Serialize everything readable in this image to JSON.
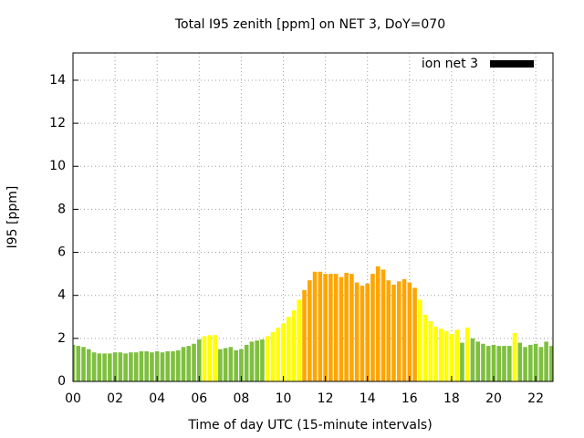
{
  "chart_data": {
    "type": "bar",
    "title": "Total I95 zenith [ppm] on NET 3, DoY=070",
    "xlabel": "Time of day UTC (15-minute intervals)",
    "ylabel": "I95 [ppm]",
    "legend": "top-right",
    "grid": true,
    "xlim": [
      0,
      22.82
    ],
    "ylim": [
      0,
      15.27
    ],
    "xticks": [
      {
        "value": 0,
        "label": "00"
      },
      {
        "value": 2,
        "label": "02"
      },
      {
        "value": 4,
        "label": "04"
      },
      {
        "value": 6,
        "label": "06"
      },
      {
        "value": 8,
        "label": "08"
      },
      10,
      12,
      14,
      16,
      18,
      20,
      22
    ],
    "yticks": [
      0,
      2,
      4,
      6,
      8,
      10,
      12,
      14
    ],
    "x": [
      0,
      0.25,
      0.5,
      0.75,
      1,
      1.25,
      1.5,
      1.75,
      2,
      2.25,
      2.5,
      2.75,
      3,
      3.25,
      3.5,
      3.75,
      4,
      4.25,
      4.5,
      4.75,
      5,
      5.25,
      5.5,
      5.75,
      6,
      6.25,
      6.5,
      6.75,
      7,
      7.25,
      7.5,
      7.75,
      8,
      8.25,
      8.5,
      8.75,
      9,
      9.25,
      9.5,
      9.75,
      10,
      10.25,
      10.5,
      10.75,
      11,
      11.25,
      11.5,
      11.75,
      12,
      12.25,
      12.5,
      12.75,
      13,
      13.25,
      13.5,
      13.75,
      14,
      14.25,
      14.5,
      14.75,
      15,
      15.25,
      15.5,
      15.75,
      16,
      16.25,
      16.5,
      16.75,
      17,
      17.25,
      17.5,
      17.75,
      18,
      18.25,
      18.5,
      18.75,
      19,
      19.25,
      19.5,
      19.75,
      20,
      20.25,
      20.5,
      20.75,
      21,
      21.25,
      21.5,
      21.75,
      22,
      22.25,
      22.5,
      22.75
    ],
    "series": [
      {
        "name": "ion net 3",
        "color": "#000000",
        "values": [
          1.7,
          1.65,
          1.6,
          1.5,
          1.35,
          1.3,
          1.3,
          1.3,
          1.35,
          1.35,
          1.3,
          1.35,
          1.35,
          1.4,
          1.4,
          1.35,
          1.4,
          1.35,
          1.4,
          1.4,
          1.45,
          1.6,
          1.65,
          1.75,
          1.95,
          2.1,
          2.15,
          2.15,
          1.5,
          1.55,
          1.6,
          1.45,
          1.5,
          1.7,
          1.85,
          1.9,
          1.95,
          2.1,
          2.3,
          2.5,
          2.7,
          3.0,
          3.3,
          3.8,
          4.25,
          4.7,
          5.1,
          5.1,
          5.0,
          5.0,
          5.0,
          4.85,
          5.05,
          5.0,
          4.6,
          4.45,
          4.55,
          5.0,
          5.35,
          5.2,
          4.7,
          4.5,
          4.65,
          4.75,
          4.6,
          4.35,
          3.8,
          3.1,
          2.8,
          2.55,
          2.45,
          2.35,
          2.2,
          2.4,
          1.8,
          2.5,
          2.0,
          1.85,
          1.75,
          1.65,
          1.7,
          1.65,
          1.65,
          1.65,
          2.25,
          1.8,
          1.6,
          1.7,
          1.75,
          1.6,
          1.85,
          1.65
        ],
        "colors": [
          "#7fbf3f",
          "#7fbf3f",
          "#7fbf3f",
          "#7fbf3f",
          "#7fbf3f",
          "#7fbf3f",
          "#7fbf3f",
          "#7fbf3f",
          "#7fbf3f",
          "#7fbf3f",
          "#7fbf3f",
          "#7fbf3f",
          "#7fbf3f",
          "#7fbf3f",
          "#7fbf3f",
          "#7fbf3f",
          "#7fbf3f",
          "#7fbf3f",
          "#7fbf3f",
          "#7fbf3f",
          "#7fbf3f",
          "#7fbf3f",
          "#7fbf3f",
          "#7fbf3f",
          "#7fbf3f",
          "#ffff00",
          "#ffff00",
          "#ffff00",
          "#7fbf3f",
          "#7fbf3f",
          "#7fbf3f",
          "#7fbf3f",
          "#7fbf3f",
          "#7fbf3f",
          "#7fbf3f",
          "#7fbf3f",
          "#7fbf3f",
          "#ffff00",
          "#ffff00",
          "#ffff00",
          "#ffff00",
          "#ffff00",
          "#ffff00",
          "#ffff00",
          "#ffa500",
          "#ffa500",
          "#ffa500",
          "#ffa500",
          "#ffa500",
          "#ffa500",
          "#ffa500",
          "#ffa500",
          "#ffa500",
          "#ffa500",
          "#ffa500",
          "#ffa500",
          "#ffa500",
          "#ffa500",
          "#ffa500",
          "#ffa500",
          "#ffa500",
          "#ffa500",
          "#ffa500",
          "#ffa500",
          "#ffa500",
          "#ffa500",
          "#ffff00",
          "#ffff00",
          "#ffff00",
          "#ffff00",
          "#ffff00",
          "#ffff00",
          "#ffff00",
          "#ffff00",
          "#7fbf3f",
          "#ffff00",
          "#7fbf3f",
          "#7fbf3f",
          "#7fbf3f",
          "#7fbf3f",
          "#7fbf3f",
          "#7fbf3f",
          "#7fbf3f",
          "#7fbf3f",
          "#ffff00",
          "#7fbf3f",
          "#7fbf3f",
          "#7fbf3f",
          "#7fbf3f",
          "#7fbf3f",
          "#7fbf3f",
          "#7fbf3f"
        ]
      }
    ]
  }
}
